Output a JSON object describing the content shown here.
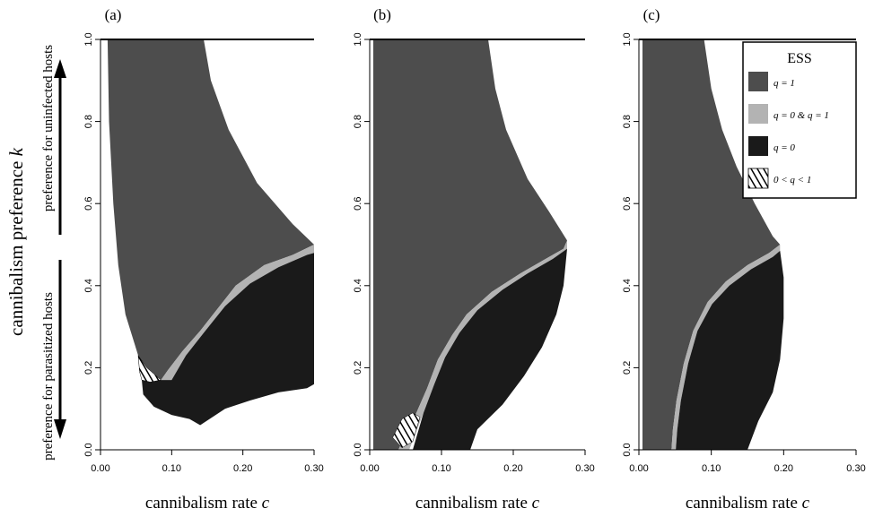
{
  "ylabel": {
    "main": "cannibalism preference ",
    "var": "k",
    "upper_note": "preference for uninfected hosts",
    "lower_note": "preference for parasitized hosts"
  },
  "legend": {
    "title": "ESS",
    "items": [
      {
        "label": "q = 1",
        "color": "#4d4d4d",
        "pattern": false
      },
      {
        "label": "q = 0 & q = 1",
        "color": "#b3b3b3",
        "pattern": false
      },
      {
        "label": "q = 0",
        "color": "#1a1a1a",
        "pattern": false
      },
      {
        "label": "0 < q < 1",
        "color": "#ffffff",
        "pattern": true
      }
    ]
  },
  "colors": {
    "q1": "#4d4d4d",
    "both": "#b3b3b3",
    "q0": "#1a1a1a",
    "mixed": "#ffffff"
  },
  "chart_data": [
    {
      "type": "heatmap",
      "panel": "(a)",
      "xlabel_text": "cannibalism rate ",
      "xlabel_var": "c",
      "xlim": [
        0,
        0.3
      ],
      "ylim": [
        0,
        1.0
      ],
      "xticks": [
        "0.00",
        "0.10",
        "0.20",
        "0.30"
      ],
      "yticks": [
        "0.0",
        "0.2",
        "0.4",
        "0.6",
        "0.8",
        "1.0"
      ],
      "regions": [
        {
          "ess": "q = 1",
          "polygon": [
            [
              0.01,
              1.0
            ],
            [
              0.145,
              1.0
            ],
            [
              0.155,
              0.9
            ],
            [
              0.18,
              0.78
            ],
            [
              0.22,
              0.65
            ],
            [
              0.27,
              0.55
            ],
            [
              0.3,
              0.5
            ],
            [
              0.27,
              0.475
            ],
            [
              0.23,
              0.45
            ],
            [
              0.19,
              0.4
            ],
            [
              0.165,
              0.345
            ],
            [
              0.14,
              0.29
            ],
            [
              0.115,
              0.24
            ],
            [
              0.095,
              0.195
            ],
            [
              0.085,
              0.17
            ],
            [
              0.065,
              0.2
            ],
            [
              0.053,
              0.23
            ],
            [
              0.035,
              0.33
            ],
            [
              0.025,
              0.45
            ],
            [
              0.018,
              0.6
            ],
            [
              0.012,
              0.8
            ]
          ]
        },
        {
          "ess": "q = 0 & q = 1",
          "polygon": [
            [
              0.3,
              0.5
            ],
            [
              0.27,
              0.475
            ],
            [
              0.23,
              0.45
            ],
            [
              0.19,
              0.4
            ],
            [
              0.165,
              0.345
            ],
            [
              0.14,
              0.29
            ],
            [
              0.115,
              0.24
            ],
            [
              0.095,
              0.195
            ],
            [
              0.085,
              0.17
            ],
            [
              0.1,
              0.17
            ],
            [
              0.12,
              0.23
            ],
            [
              0.145,
              0.285
            ],
            [
              0.175,
              0.35
            ],
            [
              0.21,
              0.405
            ],
            [
              0.25,
              0.445
            ],
            [
              0.29,
              0.475
            ],
            [
              0.3,
              0.48
            ]
          ]
        },
        {
          "ess": "q = 0",
          "polygon": [
            [
              0.3,
              0.48
            ],
            [
              0.29,
              0.475
            ],
            [
              0.25,
              0.445
            ],
            [
              0.21,
              0.405
            ],
            [
              0.175,
              0.35
            ],
            [
              0.145,
              0.285
            ],
            [
              0.12,
              0.23
            ],
            [
              0.1,
              0.17
            ],
            [
              0.085,
              0.17
            ],
            [
              0.07,
              0.165
            ],
            [
              0.058,
              0.17
            ],
            [
              0.06,
              0.135
            ],
            [
              0.075,
              0.105
            ],
            [
              0.1,
              0.085
            ],
            [
              0.125,
              0.075
            ],
            [
              0.14,
              0.06
            ],
            [
              0.175,
              0.1
            ],
            [
              0.21,
              0.12
            ],
            [
              0.25,
              0.14
            ],
            [
              0.29,
              0.15
            ],
            [
              0.3,
              0.16
            ]
          ]
        },
        {
          "ess": "0 < q < 1",
          "polygon": [
            [
              0.053,
              0.23
            ],
            [
              0.065,
              0.2
            ],
            [
              0.085,
              0.17
            ],
            [
              0.07,
              0.165
            ],
            [
              0.058,
              0.17
            ],
            [
              0.055,
              0.19
            ]
          ]
        }
      ]
    },
    {
      "type": "heatmap",
      "panel": "(b)",
      "xlabel_text": "cannibalism rate ",
      "xlabel_var": "c",
      "xlim": [
        0,
        0.3
      ],
      "ylim": [
        0,
        1.0
      ],
      "xticks": [
        "0.00",
        "0.10",
        "0.20",
        "0.30"
      ],
      "yticks": [
        "0.0",
        "0.2",
        "0.4",
        "0.6",
        "0.8",
        "1.0"
      ],
      "regions": [
        {
          "ess": "q = 1",
          "polygon": [
            [
              0.005,
              1.0
            ],
            [
              0.165,
              1.0
            ],
            [
              0.175,
              0.88
            ],
            [
              0.19,
              0.78
            ],
            [
              0.22,
              0.66
            ],
            [
              0.25,
              0.58
            ],
            [
              0.275,
              0.51
            ],
            [
              0.27,
              0.49
            ],
            [
              0.245,
              0.465
            ],
            [
              0.21,
              0.43
            ],
            [
              0.17,
              0.385
            ],
            [
              0.135,
              0.33
            ],
            [
              0.115,
              0.28
            ],
            [
              0.095,
              0.22
            ],
            [
              0.08,
              0.15
            ],
            [
              0.065,
              0.09
            ],
            [
              0.05,
              0.04
            ],
            [
              0.04,
              0.0
            ],
            [
              0.005,
              0.0
            ]
          ]
        },
        {
          "ess": "q = 0 & q = 1",
          "polygon": [
            [
              0.275,
              0.51
            ],
            [
              0.27,
              0.49
            ],
            [
              0.245,
              0.465
            ],
            [
              0.21,
              0.43
            ],
            [
              0.17,
              0.385
            ],
            [
              0.135,
              0.33
            ],
            [
              0.115,
              0.28
            ],
            [
              0.095,
              0.22
            ],
            [
              0.08,
              0.15
            ],
            [
              0.065,
              0.09
            ],
            [
              0.05,
              0.04
            ],
            [
              0.04,
              0.0
            ],
            [
              0.055,
              0.0
            ],
            [
              0.075,
              0.09
            ],
            [
              0.09,
              0.16
            ],
            [
              0.105,
              0.225
            ],
            [
              0.125,
              0.285
            ],
            [
              0.15,
              0.34
            ],
            [
              0.185,
              0.39
            ],
            [
              0.22,
              0.43
            ],
            [
              0.255,
              0.465
            ],
            [
              0.275,
              0.49
            ]
          ]
        },
        {
          "ess": "q = 0",
          "polygon": [
            [
              0.275,
              0.49
            ],
            [
              0.255,
              0.465
            ],
            [
              0.22,
              0.43
            ],
            [
              0.185,
              0.39
            ],
            [
              0.15,
              0.34
            ],
            [
              0.125,
              0.285
            ],
            [
              0.105,
              0.225
            ],
            [
              0.09,
              0.16
            ],
            [
              0.075,
              0.09
            ],
            [
              0.06,
              0.0
            ],
            [
              0.14,
              0.0
            ],
            [
              0.15,
              0.05
            ],
            [
              0.185,
              0.11
            ],
            [
              0.215,
              0.18
            ],
            [
              0.24,
              0.25
            ],
            [
              0.26,
              0.33
            ],
            [
              0.27,
              0.4
            ]
          ]
        },
        {
          "ess": "0 < q < 1",
          "polygon": [
            [
              0.032,
              0.03
            ],
            [
              0.045,
              0.075
            ],
            [
              0.06,
              0.09
            ],
            [
              0.07,
              0.08
            ],
            [
              0.06,
              0.02
            ],
            [
              0.045,
              0.005
            ]
          ]
        }
      ]
    },
    {
      "type": "heatmap",
      "panel": "(c)",
      "xlabel_text": "cannibalism rate ",
      "xlabel_var": "c",
      "xlim": [
        0,
        0.3
      ],
      "ylim": [
        0,
        1.0
      ],
      "xticks": [
        "0.00",
        "0.10",
        "0.20",
        "0.30"
      ],
      "yticks": [
        "0.0",
        "0.2",
        "0.4",
        "0.6",
        "0.8",
        "1.0"
      ],
      "regions": [
        {
          "ess": "q = 1",
          "polygon": [
            [
              0.005,
              1.0
            ],
            [
              0.09,
              1.0
            ],
            [
              0.1,
              0.88
            ],
            [
              0.115,
              0.78
            ],
            [
              0.135,
              0.69
            ],
            [
              0.16,
              0.6
            ],
            [
              0.185,
              0.52
            ],
            [
              0.195,
              0.5
            ],
            [
              0.18,
              0.48
            ],
            [
              0.15,
              0.45
            ],
            [
              0.12,
              0.41
            ],
            [
              0.095,
              0.36
            ],
            [
              0.075,
              0.29
            ],
            [
              0.062,
              0.21
            ],
            [
              0.052,
              0.12
            ],
            [
              0.047,
              0.05
            ],
            [
              0.045,
              0.0
            ],
            [
              0.005,
              0.0
            ]
          ]
        },
        {
          "ess": "q = 0 & q = 1",
          "polygon": [
            [
              0.195,
              0.5
            ],
            [
              0.18,
              0.48
            ],
            [
              0.15,
              0.45
            ],
            [
              0.12,
              0.41
            ],
            [
              0.095,
              0.36
            ],
            [
              0.075,
              0.29
            ],
            [
              0.062,
              0.21
            ],
            [
              0.052,
              0.12
            ],
            [
              0.047,
              0.05
            ],
            [
              0.045,
              0.0
            ],
            [
              0.051,
              0.0
            ],
            [
              0.053,
              0.05
            ],
            [
              0.058,
              0.12
            ],
            [
              0.068,
              0.21
            ],
            [
              0.081,
              0.29
            ],
            [
              0.101,
              0.355
            ],
            [
              0.125,
              0.4
            ],
            [
              0.155,
              0.44
            ],
            [
              0.185,
              0.47
            ],
            [
              0.195,
              0.485
            ]
          ]
        },
        {
          "ess": "q = 0",
          "polygon": [
            [
              0.195,
              0.485
            ],
            [
              0.185,
              0.47
            ],
            [
              0.155,
              0.44
            ],
            [
              0.125,
              0.4
            ],
            [
              0.101,
              0.355
            ],
            [
              0.081,
              0.29
            ],
            [
              0.068,
              0.21
            ],
            [
              0.058,
              0.12
            ],
            [
              0.053,
              0.05
            ],
            [
              0.051,
              0.0
            ],
            [
              0.15,
              0.0
            ],
            [
              0.165,
              0.07
            ],
            [
              0.185,
              0.14
            ],
            [
              0.195,
              0.22
            ],
            [
              0.2,
              0.32
            ],
            [
              0.2,
              0.42
            ]
          ]
        }
      ]
    }
  ]
}
